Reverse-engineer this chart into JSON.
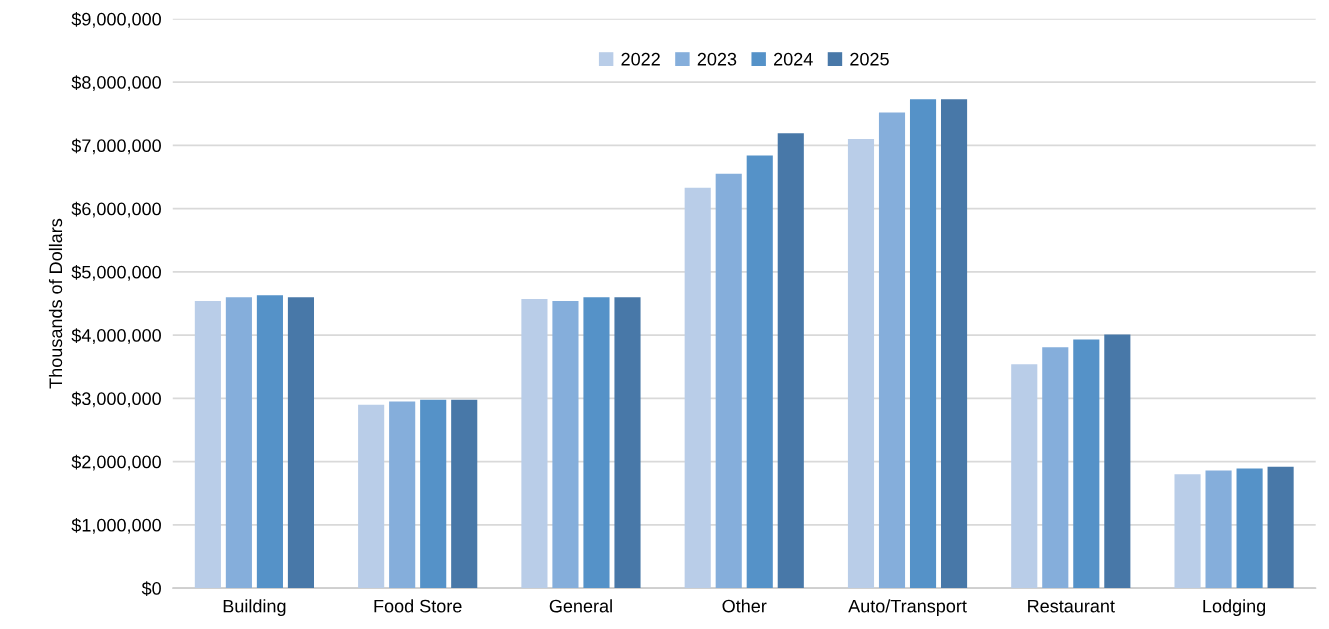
{
  "chart_data": {
    "type": "bar",
    "ylabel": "Thousands of Dollars",
    "categories": [
      "Building",
      "Food Store",
      "General",
      "Other",
      "Auto/Transport",
      "Restaurant",
      "Lodging"
    ],
    "series": [
      {
        "name": "2022",
        "color": "#b9cde8",
        "values": [
          4540000,
          2900000,
          4570000,
          6330000,
          7100000,
          3540000,
          1800000
        ]
      },
      {
        "name": "2023",
        "color": "#85aedb",
        "values": [
          4600000,
          2950000,
          4540000,
          6550000,
          7520000,
          3810000,
          1860000
        ]
      },
      {
        "name": "2024",
        "color": "#5592c8",
        "values": [
          4630000,
          2980000,
          4600000,
          6840000,
          7730000,
          3930000,
          1890000
        ]
      },
      {
        "name": "2025",
        "color": "#4878a8",
        "values": [
          4600000,
          2980000,
          4600000,
          7190000,
          7730000,
          4010000,
          1920000
        ]
      }
    ],
    "ylim": [
      0,
      9000000
    ],
    "yticks": [
      {
        "value": 0,
        "label": "$0"
      },
      {
        "value": 1000000,
        "label": "$1,000,000"
      },
      {
        "value": 2000000,
        "label": "$2,000,000"
      },
      {
        "value": 3000000,
        "label": "$3,000,000"
      },
      {
        "value": 4000000,
        "label": "$4,000,000"
      },
      {
        "value": 5000000,
        "label": "$5,000,000"
      },
      {
        "value": 6000000,
        "label": "$6,000,000"
      },
      {
        "value": 7000000,
        "label": "$7,000,000"
      },
      {
        "value": 8000000,
        "label": "$8,000,000"
      },
      {
        "value": 9000000,
        "label": "$9,000,000"
      }
    ],
    "grid": "y",
    "legend": "top"
  }
}
